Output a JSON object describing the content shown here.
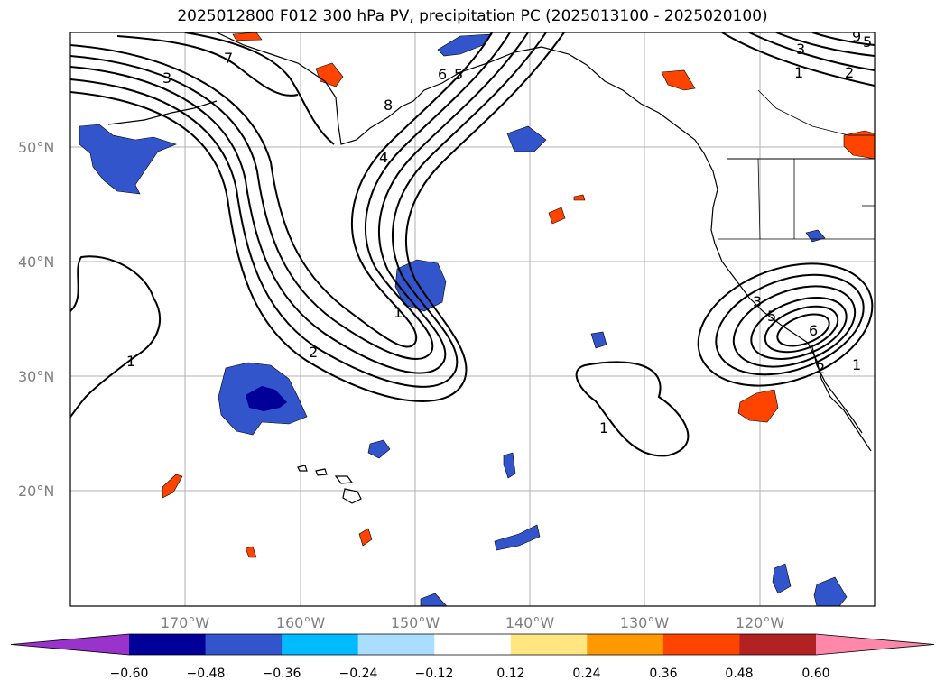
{
  "title": "2025012800 F012 300 hPa PV, precipitation PC (2025013100 - 2025020100)",
  "map": {
    "lon_labels": [
      "170°W",
      "160°W",
      "150°W",
      "140°W",
      "130°W",
      "120°W"
    ],
    "lat_labels": [
      "50°N",
      "40°N",
      "30°N",
      "20°N"
    ],
    "contour_labels": [
      "7",
      "3",
      "9",
      "5",
      "6",
      "5",
      "8",
      "4",
      "1",
      "2",
      "1",
      "3",
      "2",
      "1",
      "3",
      "5",
      "6",
      "2",
      "1",
      "1"
    ]
  },
  "colorbar": {
    "ticks": [
      "−0.60",
      "−0.48",
      "−0.36",
      "−0.24",
      "−0.12",
      "0.12",
      "0.24",
      "0.36",
      "0.48",
      "0.60"
    ],
    "colors": [
      "#9933cc",
      "#000099",
      "#3355cc",
      "#00bbff",
      "#aadeff",
      "#ffffff",
      "#ffe680",
      "#ff9900",
      "#ff4400",
      "#b22222",
      "#ff88aa"
    ]
  }
}
